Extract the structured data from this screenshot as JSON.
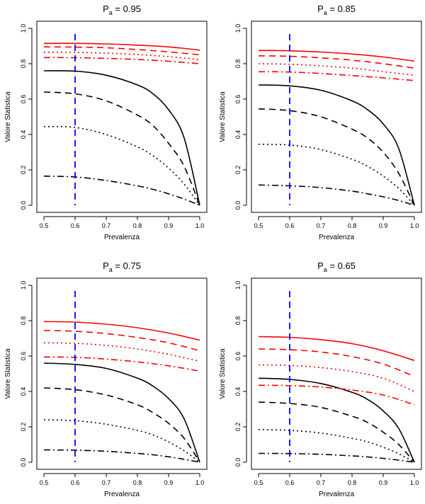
{
  "figure": {
    "xlabel": "Prevalenza",
    "ylabel": "Valore Statistica"
  },
  "axes_template": {
    "xlim": [
      0.5,
      1.0
    ],
    "ylim": [
      0.0,
      1.0
    ],
    "xticks": [
      "0.5",
      "0.6",
      "0.7",
      "0.8",
      "0.9",
      "1.0"
    ],
    "yticks": [
      "0.0",
      "0.2",
      "0.4",
      "0.6",
      "0.8",
      "1.0"
    ],
    "vline_x": 0.6,
    "colors": {
      "black": "#000000",
      "red": "#ff0000",
      "blue": "#0000ff"
    }
  },
  "chart_data": [
    {
      "type": "line",
      "title_main": "P",
      "title_sub": "a",
      "title_rest": " = 0.95",
      "series": [
        {
          "color": "#000000",
          "style": "solid",
          "points": [
            [
              0.5,
              0.76
            ],
            [
              0.6,
              0.758
            ],
            [
              0.7,
              0.735
            ],
            [
              0.8,
              0.68
            ],
            [
              0.85,
              0.63
            ],
            [
              0.9,
              0.54
            ],
            [
              0.95,
              0.38
            ],
            [
              1.0,
              0.0
            ]
          ]
        },
        {
          "color": "#000000",
          "style": "dashed",
          "points": [
            [
              0.5,
              0.64
            ],
            [
              0.6,
              0.63
            ],
            [
              0.7,
              0.59
            ],
            [
              0.8,
              0.51
            ],
            [
              0.85,
              0.45
            ],
            [
              0.9,
              0.35
            ],
            [
              0.95,
              0.22
            ],
            [
              1.0,
              0.0
            ]
          ]
        },
        {
          "color": "#000000",
          "style": "dotted",
          "points": [
            [
              0.5,
              0.445
            ],
            [
              0.6,
              0.44
            ],
            [
              0.7,
              0.4
            ],
            [
              0.8,
              0.33
            ],
            [
              0.85,
              0.28
            ],
            [
              0.9,
              0.21
            ],
            [
              0.95,
              0.12
            ],
            [
              1.0,
              0.0
            ]
          ]
        },
        {
          "color": "#000000",
          "style": "dashdot",
          "points": [
            [
              0.5,
              0.165
            ],
            [
              0.6,
              0.16
            ],
            [
              0.7,
              0.14
            ],
            [
              0.8,
              0.11
            ],
            [
              0.85,
              0.09
            ],
            [
              0.9,
              0.065
            ],
            [
              0.95,
              0.035
            ],
            [
              1.0,
              0.0
            ]
          ]
        },
        {
          "color": "#ff0000",
          "style": "solid",
          "points": [
            [
              0.5,
              0.915
            ],
            [
              0.6,
              0.915
            ],
            [
              0.7,
              0.912
            ],
            [
              0.8,
              0.905
            ],
            [
              0.9,
              0.895
            ],
            [
              1.0,
              0.877
            ]
          ]
        },
        {
          "color": "#ff0000",
          "style": "dashed",
          "points": [
            [
              0.5,
              0.895
            ],
            [
              0.6,
              0.894
            ],
            [
              0.7,
              0.89
            ],
            [
              0.8,
              0.88
            ],
            [
              0.9,
              0.867
            ],
            [
              1.0,
              0.85
            ]
          ]
        },
        {
          "color": "#ff0000",
          "style": "dotted",
          "points": [
            [
              0.5,
              0.865
            ],
            [
              0.6,
              0.864
            ],
            [
              0.7,
              0.86
            ],
            [
              0.8,
              0.852
            ],
            [
              0.9,
              0.84
            ],
            [
              1.0,
              0.823
            ]
          ]
        },
        {
          "color": "#ff0000",
          "style": "dashdot",
          "points": [
            [
              0.5,
              0.835
            ],
            [
              0.6,
              0.834
            ],
            [
              0.7,
              0.83
            ],
            [
              0.8,
              0.824
            ],
            [
              0.9,
              0.814
            ],
            [
              1.0,
              0.8
            ]
          ]
        }
      ]
    },
    {
      "type": "line",
      "title_main": "P",
      "title_sub": "a",
      "title_rest": " = 0.85",
      "series": [
        {
          "color": "#000000",
          "style": "solid",
          "points": [
            [
              0.5,
              0.68
            ],
            [
              0.6,
              0.675
            ],
            [
              0.7,
              0.65
            ],
            [
              0.8,
              0.59
            ],
            [
              0.85,
              0.54
            ],
            [
              0.9,
              0.46
            ],
            [
              0.95,
              0.32
            ],
            [
              1.0,
              0.0
            ]
          ]
        },
        {
          "color": "#000000",
          "style": "dashed",
          "points": [
            [
              0.5,
              0.545
            ],
            [
              0.6,
              0.535
            ],
            [
              0.7,
              0.5
            ],
            [
              0.8,
              0.43
            ],
            [
              0.85,
              0.38
            ],
            [
              0.9,
              0.3
            ],
            [
              0.95,
              0.18
            ],
            [
              1.0,
              0.0
            ]
          ]
        },
        {
          "color": "#000000",
          "style": "dotted",
          "points": [
            [
              0.5,
              0.345
            ],
            [
              0.6,
              0.34
            ],
            [
              0.7,
              0.315
            ],
            [
              0.8,
              0.26
            ],
            [
              0.85,
              0.22
            ],
            [
              0.9,
              0.165
            ],
            [
              0.95,
              0.095
            ],
            [
              1.0,
              0.0
            ]
          ]
        },
        {
          "color": "#000000",
          "style": "dashdot",
          "points": [
            [
              0.5,
              0.115
            ],
            [
              0.6,
              0.11
            ],
            [
              0.7,
              0.1
            ],
            [
              0.8,
              0.08
            ],
            [
              0.85,
              0.065
            ],
            [
              0.9,
              0.048
            ],
            [
              0.95,
              0.027
            ],
            [
              1.0,
              0.0
            ]
          ]
        },
        {
          "color": "#ff0000",
          "style": "solid",
          "points": [
            [
              0.5,
              0.875
            ],
            [
              0.6,
              0.873
            ],
            [
              0.7,
              0.866
            ],
            [
              0.8,
              0.855
            ],
            [
              0.9,
              0.838
            ],
            [
              1.0,
              0.815
            ]
          ]
        },
        {
          "color": "#ff0000",
          "style": "dashed",
          "points": [
            [
              0.5,
              0.845
            ],
            [
              0.6,
              0.842
            ],
            [
              0.7,
              0.833
            ],
            [
              0.8,
              0.82
            ],
            [
              0.9,
              0.8
            ],
            [
              1.0,
              0.775
            ]
          ]
        },
        {
          "color": "#ff0000",
          "style": "dotted",
          "points": [
            [
              0.5,
              0.8
            ],
            [
              0.6,
              0.797
            ],
            [
              0.7,
              0.788
            ],
            [
              0.8,
              0.775
            ],
            [
              0.9,
              0.755
            ],
            [
              1.0,
              0.735
            ]
          ]
        },
        {
          "color": "#ff0000",
          "style": "dashdot",
          "points": [
            [
              0.5,
              0.755
            ],
            [
              0.6,
              0.753
            ],
            [
              0.7,
              0.745
            ],
            [
              0.8,
              0.733
            ],
            [
              0.9,
              0.72
            ],
            [
              1.0,
              0.705
            ]
          ]
        }
      ]
    },
    {
      "type": "line",
      "title_main": "P",
      "title_sub": "a",
      "title_rest": " = 0.75",
      "series": [
        {
          "color": "#000000",
          "style": "solid",
          "points": [
            [
              0.5,
              0.56
            ],
            [
              0.6,
              0.553
            ],
            [
              0.7,
              0.53
            ],
            [
              0.8,
              0.475
            ],
            [
              0.85,
              0.43
            ],
            [
              0.9,
              0.36
            ],
            [
              0.95,
              0.245
            ],
            [
              1.0,
              0.0
            ]
          ]
        },
        {
          "color": "#000000",
          "style": "dashed",
          "points": [
            [
              0.5,
              0.42
            ],
            [
              0.6,
              0.41
            ],
            [
              0.7,
              0.38
            ],
            [
              0.8,
              0.325
            ],
            [
              0.85,
              0.28
            ],
            [
              0.9,
              0.22
            ],
            [
              0.95,
              0.135
            ],
            [
              1.0,
              0.0
            ]
          ]
        },
        {
          "color": "#000000",
          "style": "dotted",
          "points": [
            [
              0.5,
              0.24
            ],
            [
              0.6,
              0.235
            ],
            [
              0.7,
              0.215
            ],
            [
              0.8,
              0.18
            ],
            [
              0.85,
              0.155
            ],
            [
              0.9,
              0.115
            ],
            [
              0.95,
              0.065
            ],
            [
              1.0,
              0.0
            ]
          ]
        },
        {
          "color": "#000000",
          "style": "dashdot",
          "points": [
            [
              0.5,
              0.07
            ],
            [
              0.6,
              0.068
            ],
            [
              0.7,
              0.062
            ],
            [
              0.8,
              0.05
            ],
            [
              0.85,
              0.042
            ],
            [
              0.9,
              0.031
            ],
            [
              0.95,
              0.017
            ],
            [
              1.0,
              0.0
            ]
          ]
        },
        {
          "color": "#ff0000",
          "style": "solid",
          "points": [
            [
              0.5,
              0.795
            ],
            [
              0.6,
              0.792
            ],
            [
              0.7,
              0.78
            ],
            [
              0.8,
              0.76
            ],
            [
              0.9,
              0.73
            ],
            [
              1.0,
              0.69
            ]
          ]
        },
        {
          "color": "#ff0000",
          "style": "dashed",
          "points": [
            [
              0.5,
              0.745
            ],
            [
              0.6,
              0.74
            ],
            [
              0.7,
              0.727
            ],
            [
              0.8,
              0.705
            ],
            [
              0.9,
              0.675
            ],
            [
              1.0,
              0.63
            ]
          ]
        },
        {
          "color": "#ff0000",
          "style": "dotted",
          "points": [
            [
              0.5,
              0.675
            ],
            [
              0.6,
              0.672
            ],
            [
              0.7,
              0.66
            ],
            [
              0.8,
              0.64
            ],
            [
              0.9,
              0.61
            ],
            [
              1.0,
              0.57
            ]
          ]
        },
        {
          "color": "#ff0000",
          "style": "dashdot",
          "points": [
            [
              0.5,
              0.595
            ],
            [
              0.6,
              0.593
            ],
            [
              0.7,
              0.583
            ],
            [
              0.8,
              0.567
            ],
            [
              0.9,
              0.545
            ],
            [
              1.0,
              0.515
            ]
          ]
        }
      ]
    },
    {
      "type": "line",
      "title_main": "P",
      "title_sub": "a",
      "title_rest": " = 0.65",
      "series": [
        {
          "color": "#000000",
          "style": "solid",
          "points": [
            [
              0.5,
              0.475
            ],
            [
              0.6,
              0.468
            ],
            [
              0.7,
              0.445
            ],
            [
              0.8,
              0.395
            ],
            [
              0.85,
              0.355
            ],
            [
              0.9,
              0.29
            ],
            [
              0.95,
              0.19
            ],
            [
              1.0,
              0.0
            ]
          ]
        },
        {
          "color": "#000000",
          "style": "dashed",
          "points": [
            [
              0.5,
              0.34
            ],
            [
              0.6,
              0.332
            ],
            [
              0.7,
              0.31
            ],
            [
              0.8,
              0.26
            ],
            [
              0.85,
              0.225
            ],
            [
              0.9,
              0.17
            ],
            [
              0.95,
              0.1
            ],
            [
              1.0,
              0.0
            ]
          ]
        },
        {
          "color": "#000000",
          "style": "dotted",
          "points": [
            [
              0.5,
              0.185
            ],
            [
              0.6,
              0.18
            ],
            [
              0.7,
              0.165
            ],
            [
              0.8,
              0.135
            ],
            [
              0.85,
              0.115
            ],
            [
              0.9,
              0.085
            ],
            [
              0.95,
              0.048
            ],
            [
              1.0,
              0.0
            ]
          ]
        },
        {
          "color": "#000000",
          "style": "dashdot",
          "points": [
            [
              0.5,
              0.05
            ],
            [
              0.6,
              0.049
            ],
            [
              0.7,
              0.045
            ],
            [
              0.8,
              0.036
            ],
            [
              0.85,
              0.03
            ],
            [
              0.9,
              0.022
            ],
            [
              0.95,
              0.012
            ],
            [
              1.0,
              0.0
            ]
          ]
        },
        {
          "color": "#ff0000",
          "style": "solid",
          "points": [
            [
              0.5,
              0.71
            ],
            [
              0.6,
              0.706
            ],
            [
              0.7,
              0.693
            ],
            [
              0.8,
              0.67
            ],
            [
              0.9,
              0.63
            ],
            [
              1.0,
              0.575
            ]
          ]
        },
        {
          "color": "#ff0000",
          "style": "dashed",
          "points": [
            [
              0.5,
              0.64
            ],
            [
              0.6,
              0.636
            ],
            [
              0.7,
              0.623
            ],
            [
              0.8,
              0.597
            ],
            [
              0.9,
              0.555
            ],
            [
              1.0,
              0.485
            ]
          ]
        },
        {
          "color": "#ff0000",
          "style": "dotted",
          "points": [
            [
              0.5,
              0.55
            ],
            [
              0.6,
              0.547
            ],
            [
              0.7,
              0.535
            ],
            [
              0.8,
              0.512
            ],
            [
              0.9,
              0.475
            ],
            [
              1.0,
              0.4
            ]
          ]
        },
        {
          "color": "#ff0000",
          "style": "dashdot",
          "points": [
            [
              0.5,
              0.435
            ],
            [
              0.6,
              0.433
            ],
            [
              0.7,
              0.425
            ],
            [
              0.8,
              0.408
            ],
            [
              0.9,
              0.38
            ],
            [
              1.0,
              0.325
            ]
          ]
        }
      ]
    }
  ]
}
